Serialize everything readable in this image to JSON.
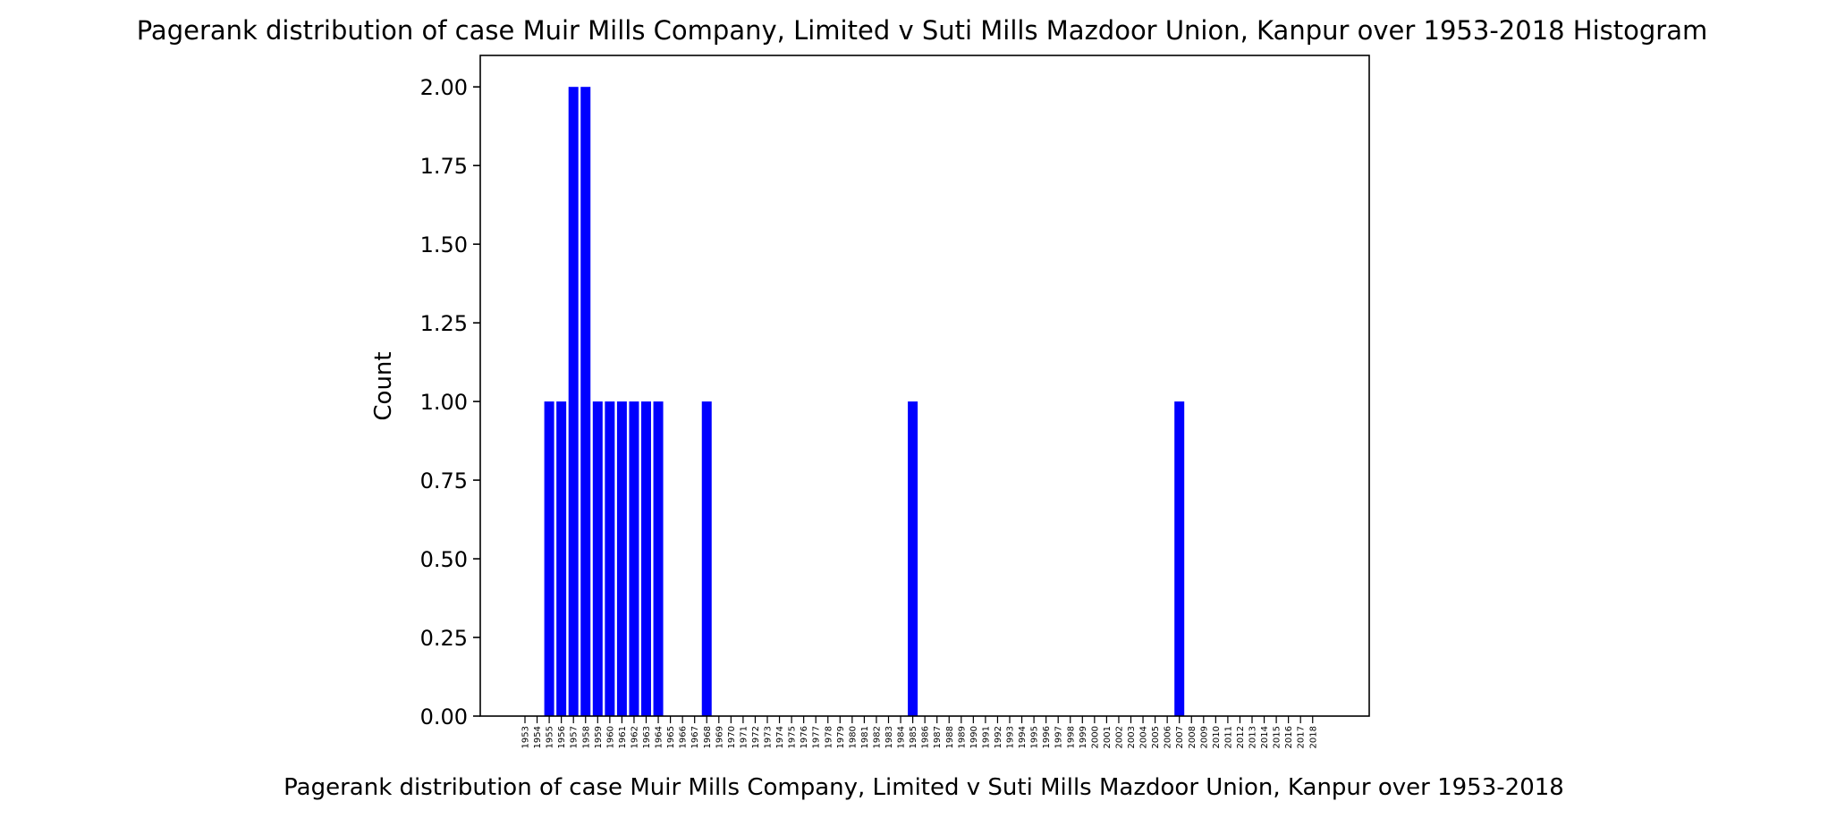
{
  "chart_data": {
    "type": "bar",
    "title": "Pagerank distribution of case Muir Mills Company, Limited v Suti Mills Mazdoor Union, Kanpur over 1953-2018 Histogram",
    "xlabel": "Pagerank distribution of case Muir Mills Company, Limited v Suti Mills Mazdoor Union, Kanpur over 1953-2018",
    "ylabel": "Count",
    "categories": [
      "1953",
      "1954",
      "1955",
      "1956",
      "1957",
      "1958",
      "1959",
      "1960",
      "1961",
      "1962",
      "1963",
      "1964",
      "1965",
      "1966",
      "1967",
      "1968",
      "1969",
      "1970",
      "1971",
      "1972",
      "1973",
      "1974",
      "1975",
      "1976",
      "1977",
      "1978",
      "1979",
      "1980",
      "1981",
      "1982",
      "1983",
      "1984",
      "1985",
      "1986",
      "1987",
      "1988",
      "1989",
      "1990",
      "1991",
      "1992",
      "1993",
      "1994",
      "1995",
      "1996",
      "1997",
      "1998",
      "1999",
      "2000",
      "2001",
      "2002",
      "2003",
      "2004",
      "2005",
      "2006",
      "2007",
      "2008",
      "2009",
      "2010",
      "2011",
      "2012",
      "2013",
      "2014",
      "2015",
      "2016",
      "2017",
      "2018"
    ],
    "values": [
      0,
      0,
      1,
      1,
      2,
      2,
      1,
      1,
      1,
      1,
      1,
      1,
      0,
      0,
      0,
      1,
      0,
      0,
      0,
      0,
      0,
      0,
      0,
      0,
      0,
      0,
      0,
      0,
      0,
      0,
      0,
      0,
      1,
      0,
      0,
      0,
      0,
      0,
      0,
      0,
      0,
      0,
      0,
      0,
      0,
      0,
      0,
      0,
      0,
      0,
      0,
      0,
      0,
      0,
      1,
      0,
      0,
      0,
      0,
      0,
      0,
      0,
      0,
      0,
      0,
      0
    ],
    "ylim": [
      0,
      2.1
    ],
    "yticks": [
      "0.00",
      "0.25",
      "0.50",
      "0.75",
      "1.00",
      "1.25",
      "1.50",
      "1.75",
      "2.00"
    ],
    "bar_color": "#0000ff",
    "grid": false,
    "legend": "none"
  }
}
